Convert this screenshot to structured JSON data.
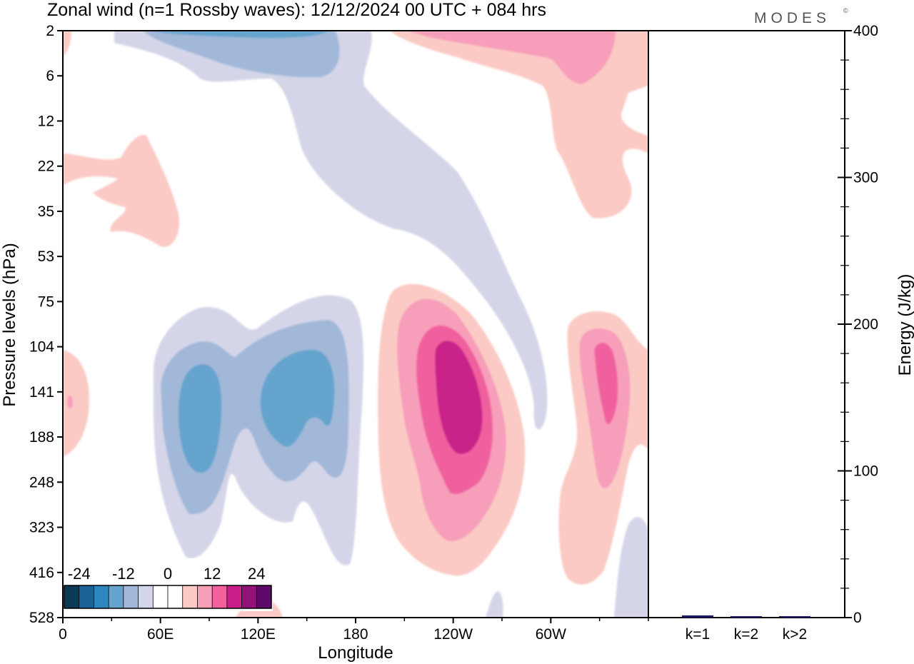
{
  "header": {
    "title": "Zonal wind (n=1 Rossby waves):  12/12/2024  00 UTC  + 084 hrs",
    "brand": "MODES",
    "brand_mark": "©"
  },
  "chart_data": [
    {
      "type": "heatmap",
      "title": "Zonal wind (n=1 Rossby waves):  12/12/2024  00 UTC  + 084 hrs",
      "xlabel": "Longitude",
      "ylabel": "Pressure levels (hPa)",
      "x_ticks": [
        "0",
        "60E",
        "120E",
        "180",
        "120W",
        "60W"
      ],
      "x_tick_lon_east": [
        0,
        60,
        120,
        180,
        240,
        300
      ],
      "xlim_lon_east": [
        0,
        360
      ],
      "y_ticks": [
        "2",
        "6",
        "12",
        "22",
        "35",
        "53",
        "75",
        "104",
        "141",
        "188",
        "248",
        "323",
        "416",
        "528"
      ],
      "y_levels_hpa": [
        2,
        6,
        12,
        22,
        35,
        53,
        75,
        104,
        141,
        188,
        248,
        323,
        416,
        528
      ],
      "y_scale": "categorical pressure levels, top to bottom",
      "colorbar": {
        "labels": [
          "-24",
          "-12",
          "0",
          "12",
          "24"
        ],
        "label_values": [
          -24,
          -12,
          0,
          12,
          24
        ],
        "colors": [
          "#0b3a56",
          "#1a6396",
          "#2f87bf",
          "#65a4cd",
          "#a2b8d9",
          "#d4d5e8",
          "#ffffff",
          "#ffffff",
          "#fbcac5",
          "#f79fba",
          "#f0619e",
          "#c92189",
          "#931278",
          "#5e0a6a"
        ],
        "placement": "bottom-left"
      },
      "features": [
        {
          "name": "stratospheric easterly band",
          "sign": "negative",
          "from_lon_east": 40,
          "to_lon_east": 300,
          "from_hpa": 2,
          "to_hpa": 188,
          "peak": -8
        },
        {
          "name": "upper westerly patch",
          "sign": "positive",
          "lon_east": 310,
          "hpa": 6,
          "peak": 14
        },
        {
          "name": "upper-left westerly patch",
          "sign": "positive",
          "lon_east": 30,
          "hpa": 35,
          "peak": 4
        },
        {
          "name": "tropospheric easterly core west",
          "sign": "negative",
          "lon_east": 85,
          "hpa": 141,
          "peak": -8
        },
        {
          "name": "tropospheric easterly core east",
          "sign": "negative",
          "lon_east": 140,
          "hpa": 141,
          "peak": -8
        },
        {
          "name": "tropospheric westerly core",
          "sign": "positive",
          "lon_east": 240,
          "hpa": 141,
          "peak": 16
        },
        {
          "name": "tropospheric westerly core east",
          "sign": "positive",
          "lon_east": 335,
          "hpa": 141,
          "peak": 12
        }
      ]
    },
    {
      "type": "bar",
      "categories": [
        "k=1",
        "k=2",
        "k>2"
      ],
      "values": [
        1.5,
        0.5,
        0.8
      ],
      "ylabel": "Energy (J/kg)",
      "y_ticks": [
        "0",
        "100",
        "200",
        "300",
        "400"
      ],
      "ylim": [
        0,
        400
      ],
      "bar_color": "#1a1a5e"
    }
  ]
}
